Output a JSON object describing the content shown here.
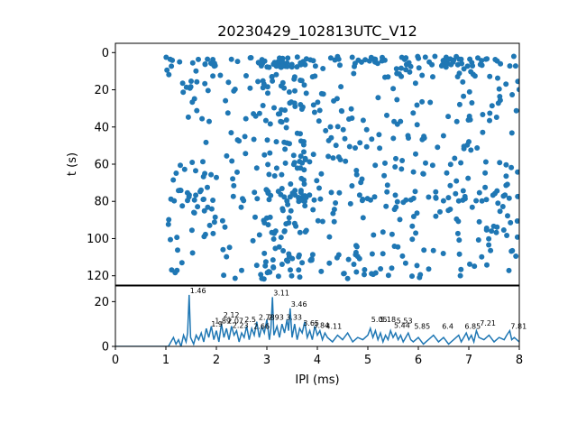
{
  "chart_data": [
    {
      "type": "scatter",
      "title": "20230429_102813UTC_V12",
      "xlabel": "",
      "ylabel": "t (s)",
      "xlim": [
        0,
        8
      ],
      "ylim": [
        125,
        -5
      ],
      "y_inverted": true,
      "yticks": [
        "0",
        "20",
        "40",
        "60",
        "80",
        "100",
        "120"
      ],
      "marker_color": "#1f77b4",
      "x_range_of_points": [
        1.0,
        8.0
      ],
      "t_range_of_points": [
        2,
        122
      ],
      "point_count_estimate": 700
    },
    {
      "type": "line",
      "xlabel": "IPI (ms)",
      "ylabel": "",
      "xlim": [
        0,
        8
      ],
      "ylim": [
        0,
        27
      ],
      "xticks": [
        "0",
        "1",
        "2",
        "3",
        "4",
        "5",
        "6",
        "7",
        "8"
      ],
      "yticks": [
        "0",
        "20"
      ],
      "line_color": "#1f77b4",
      "x": [
        0.0,
        0.95,
        1.0,
        1.05,
        1.1,
        1.15,
        1.2,
        1.25,
        1.3,
        1.35,
        1.4,
        1.43,
        1.46,
        1.49,
        1.55,
        1.6,
        1.65,
        1.7,
        1.75,
        1.8,
        1.85,
        1.9,
        1.95,
        2.0,
        2.05,
        2.1,
        2.15,
        2.2,
        2.25,
        2.3,
        2.35,
        2.4,
        2.45,
        2.5,
        2.55,
        2.6,
        2.65,
        2.7,
        2.75,
        2.8,
        2.85,
        2.9,
        2.95,
        3.0,
        3.05,
        3.08,
        3.11,
        3.14,
        3.2,
        3.25,
        3.3,
        3.35,
        3.4,
        3.43,
        3.46,
        3.5,
        3.55,
        3.6,
        3.65,
        3.7,
        3.75,
        3.8,
        3.85,
        3.9,
        3.95,
        4.0,
        4.05,
        4.1,
        4.15,
        4.2,
        4.3,
        4.4,
        4.5,
        4.6,
        4.7,
        4.8,
        4.9,
        5.0,
        5.05,
        5.1,
        5.15,
        5.2,
        5.25,
        5.3,
        5.35,
        5.4,
        5.45,
        5.5,
        5.55,
        5.6,
        5.65,
        5.7,
        5.75,
        5.8,
        5.85,
        5.9,
        6.0,
        6.1,
        6.2,
        6.3,
        6.4,
        6.5,
        6.6,
        6.7,
        6.8,
        6.85,
        6.9,
        6.95,
        7.0,
        7.05,
        7.1,
        7.15,
        7.2,
        7.3,
        7.4,
        7.5,
        7.6,
        7.7,
        7.75,
        7.81,
        7.85,
        7.9,
        8.0
      ],
      "y": [
        0,
        0,
        0,
        0,
        2,
        4,
        1,
        3,
        0,
        5,
        2,
        6,
        23,
        4,
        1,
        5,
        3,
        6,
        2,
        8,
        4,
        9,
        3,
        7,
        2,
        10,
        4,
        8,
        3,
        9,
        5,
        7,
        2,
        6,
        4,
        9,
        3,
        8,
        5,
        11,
        4,
        9,
        6,
        12,
        3,
        8,
        22,
        5,
        9,
        4,
        10,
        6,
        12,
        7,
        17,
        4,
        10,
        3,
        8,
        6,
        11,
        4,
        7,
        3,
        9,
        5,
        7,
        3,
        6,
        4,
        2,
        5,
        3,
        6,
        2,
        4,
        3,
        5,
        8,
        4,
        7,
        3,
        6,
        2,
        5,
        3,
        7,
        4,
        6,
        3,
        5,
        2,
        4,
        6,
        3,
        2,
        4,
        1,
        3,
        5,
        2,
        4,
        1,
        3,
        5,
        2,
        4,
        6,
        3,
        5,
        2,
        7,
        4,
        3,
        5,
        2,
        4,
        3,
        5,
        7,
        3,
        4,
        2
      ]
    }
  ],
  "peak_labels": [
    {
      "text": "1.46",
      "x": 1.46,
      "y": 23
    },
    {
      "text": "1.9",
      "x": 1.88,
      "y": 8
    },
    {
      "text": "1.89",
      "x": 1.95,
      "y": 9.5
    },
    {
      "text": "2.12",
      "x": 2.12,
      "y": 12
    },
    {
      "text": "2.07",
      "x": 2.2,
      "y": 9.5
    },
    {
      "text": "2.23",
      "x": 2.3,
      "y": 7.5
    },
    {
      "text": "2.5",
      "x": 2.54,
      "y": 10
    },
    {
      "text": "2.66",
      "x": 2.72,
      "y": 7
    },
    {
      "text": "2.78",
      "x": 2.82,
      "y": 11
    },
    {
      "text": "2.93",
      "x": 3.0,
      "y": 11
    },
    {
      "text": "3.11",
      "x": 3.11,
      "y": 22
    },
    {
      "text": "3.33",
      "x": 3.36,
      "y": 11
    },
    {
      "text": "3.46",
      "x": 3.46,
      "y": 17
    },
    {
      "text": "3.65",
      "x": 3.7,
      "y": 8.5
    },
    {
      "text": "3.84",
      "x": 3.9,
      "y": 7.5
    },
    {
      "text": "4.11",
      "x": 4.15,
      "y": 7
    },
    {
      "text": "5.05",
      "x": 5.05,
      "y": 10
    },
    {
      "text": "5.18",
      "x": 5.22,
      "y": 10
    },
    {
      "text": "5.44",
      "x": 5.5,
      "y": 7.5
    },
    {
      "text": "5.53",
      "x": 5.55,
      "y": 9.5
    },
    {
      "text": "5.85",
      "x": 5.9,
      "y": 7
    },
    {
      "text": "6.4",
      "x": 6.45,
      "y": 7
    },
    {
      "text": "6.85",
      "x": 6.9,
      "y": 7
    },
    {
      "text": "7.21",
      "x": 7.2,
      "y": 8.5
    },
    {
      "text": "7.81",
      "x": 7.81,
      "y": 7
    }
  ]
}
